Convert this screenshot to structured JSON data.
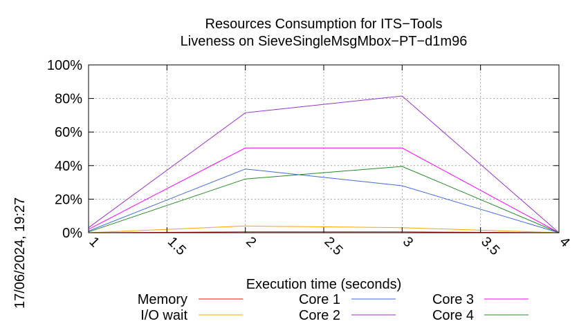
{
  "chart_data": {
    "type": "line",
    "title": [
      "Resources Consumption for ITS−Tools",
      "Liveness on SieveSingleMsgMbox−PT−d1m96"
    ],
    "xlabel": "Execution time (seconds)",
    "ylabel": "",
    "xlim": [
      1,
      4
    ],
    "ylim": [
      0,
      100
    ],
    "x_ticks": [
      "1",
      "1.5",
      "2",
      "2.5",
      "3",
      "3.5",
      "4"
    ],
    "x_tick_values": [
      1,
      1.5,
      2,
      2.5,
      3,
      3.5,
      4
    ],
    "y_ticks": [
      "0%",
      "20%",
      "40%",
      "60%",
      "80%",
      "100%"
    ],
    "y_tick_values": [
      0,
      20,
      40,
      60,
      80,
      100
    ],
    "grid": true,
    "legend_position": "bottom",
    "x": [
      1,
      2,
      3,
      4
    ],
    "series": [
      {
        "name": "Memory",
        "color": "#ff0000",
        "values": [
          0,
          0.5,
          0.5,
          0
        ]
      },
      {
        "name": "I/O wait",
        "color": "#ffa500",
        "values": [
          0,
          4,
          3,
          0
        ]
      },
      {
        "name": "Core 1",
        "color": "#4169e1",
        "values": [
          1,
          38,
          28,
          0
        ]
      },
      {
        "name": "Core 2",
        "color": "#9932cc",
        "values": [
          3,
          71.5,
          81.5,
          0
        ]
      },
      {
        "name": "Core 3",
        "color": "#ff00ff",
        "values": [
          2,
          50.5,
          50.5,
          0
        ]
      },
      {
        "name": "Core 4",
        "color": "#228b22",
        "values": [
          0.5,
          32,
          39.5,
          0
        ]
      }
    ]
  },
  "side_label": "17/06/2024, 19:27"
}
